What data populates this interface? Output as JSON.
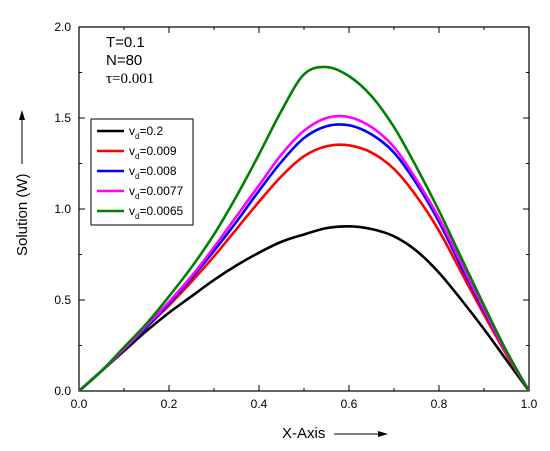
{
  "chart_data": {
    "type": "line",
    "xlabel": "X-Axis",
    "ylabel": "Solution (W)",
    "xlim": [
      0,
      1.0
    ],
    "ylim": [
      0,
      2.0
    ],
    "x_ticks": [
      "0.0",
      "0.2",
      "0.4",
      "0.6",
      "0.8",
      "1.0"
    ],
    "y_ticks": [
      "0.0",
      "0.5",
      "1.0",
      "1.5",
      "2.0"
    ],
    "grid": false,
    "legend_position": "upper-left",
    "annotations": [
      "T=0.1",
      "N=80",
      "τ=0.001"
    ],
    "x": [
      0.0,
      0.05,
      0.1,
      0.15,
      0.2,
      0.25,
      0.3,
      0.35,
      0.4,
      0.45,
      0.5,
      0.55,
      0.6,
      0.65,
      0.7,
      0.75,
      0.8,
      0.85,
      0.9,
      0.95,
      1.0
    ],
    "series": [
      {
        "name": "0.2",
        "color": "#000000",
        "values": [
          0.0,
          0.11,
          0.22,
          0.33,
          0.43,
          0.52,
          0.61,
          0.69,
          0.76,
          0.82,
          0.86,
          0.895,
          0.905,
          0.89,
          0.85,
          0.77,
          0.65,
          0.5,
          0.34,
          0.17,
          0.0
        ]
      },
      {
        "name": "0.009",
        "color": "#ff0000",
        "values": [
          0.0,
          0.11,
          0.23,
          0.35,
          0.47,
          0.6,
          0.74,
          0.89,
          1.04,
          1.18,
          1.29,
          1.345,
          1.35,
          1.31,
          1.22,
          1.07,
          0.88,
          0.65,
          0.42,
          0.2,
          0.0
        ]
      },
      {
        "name": "0.008",
        "color": "#0000ff",
        "values": [
          0.0,
          0.11,
          0.23,
          0.35,
          0.48,
          0.62,
          0.77,
          0.93,
          1.1,
          1.26,
          1.39,
          1.455,
          1.46,
          1.41,
          1.31,
          1.14,
          0.93,
          0.68,
          0.44,
          0.21,
          0.0
        ]
      },
      {
        "name": "0.0077",
        "color": "#ff00ff",
        "values": [
          0.0,
          0.11,
          0.23,
          0.36,
          0.49,
          0.63,
          0.79,
          0.96,
          1.13,
          1.3,
          1.43,
          1.5,
          1.505,
          1.45,
          1.34,
          1.16,
          0.95,
          0.7,
          0.45,
          0.21,
          0.0
        ]
      },
      {
        "name": "0.0065",
        "color": "#008000",
        "values": [
          0.0,
          0.11,
          0.24,
          0.37,
          0.52,
          0.68,
          0.86,
          1.07,
          1.3,
          1.54,
          1.74,
          1.78,
          1.73,
          1.62,
          1.45,
          1.23,
          0.99,
          0.73,
          0.47,
          0.22,
          0.0
        ]
      }
    ]
  }
}
